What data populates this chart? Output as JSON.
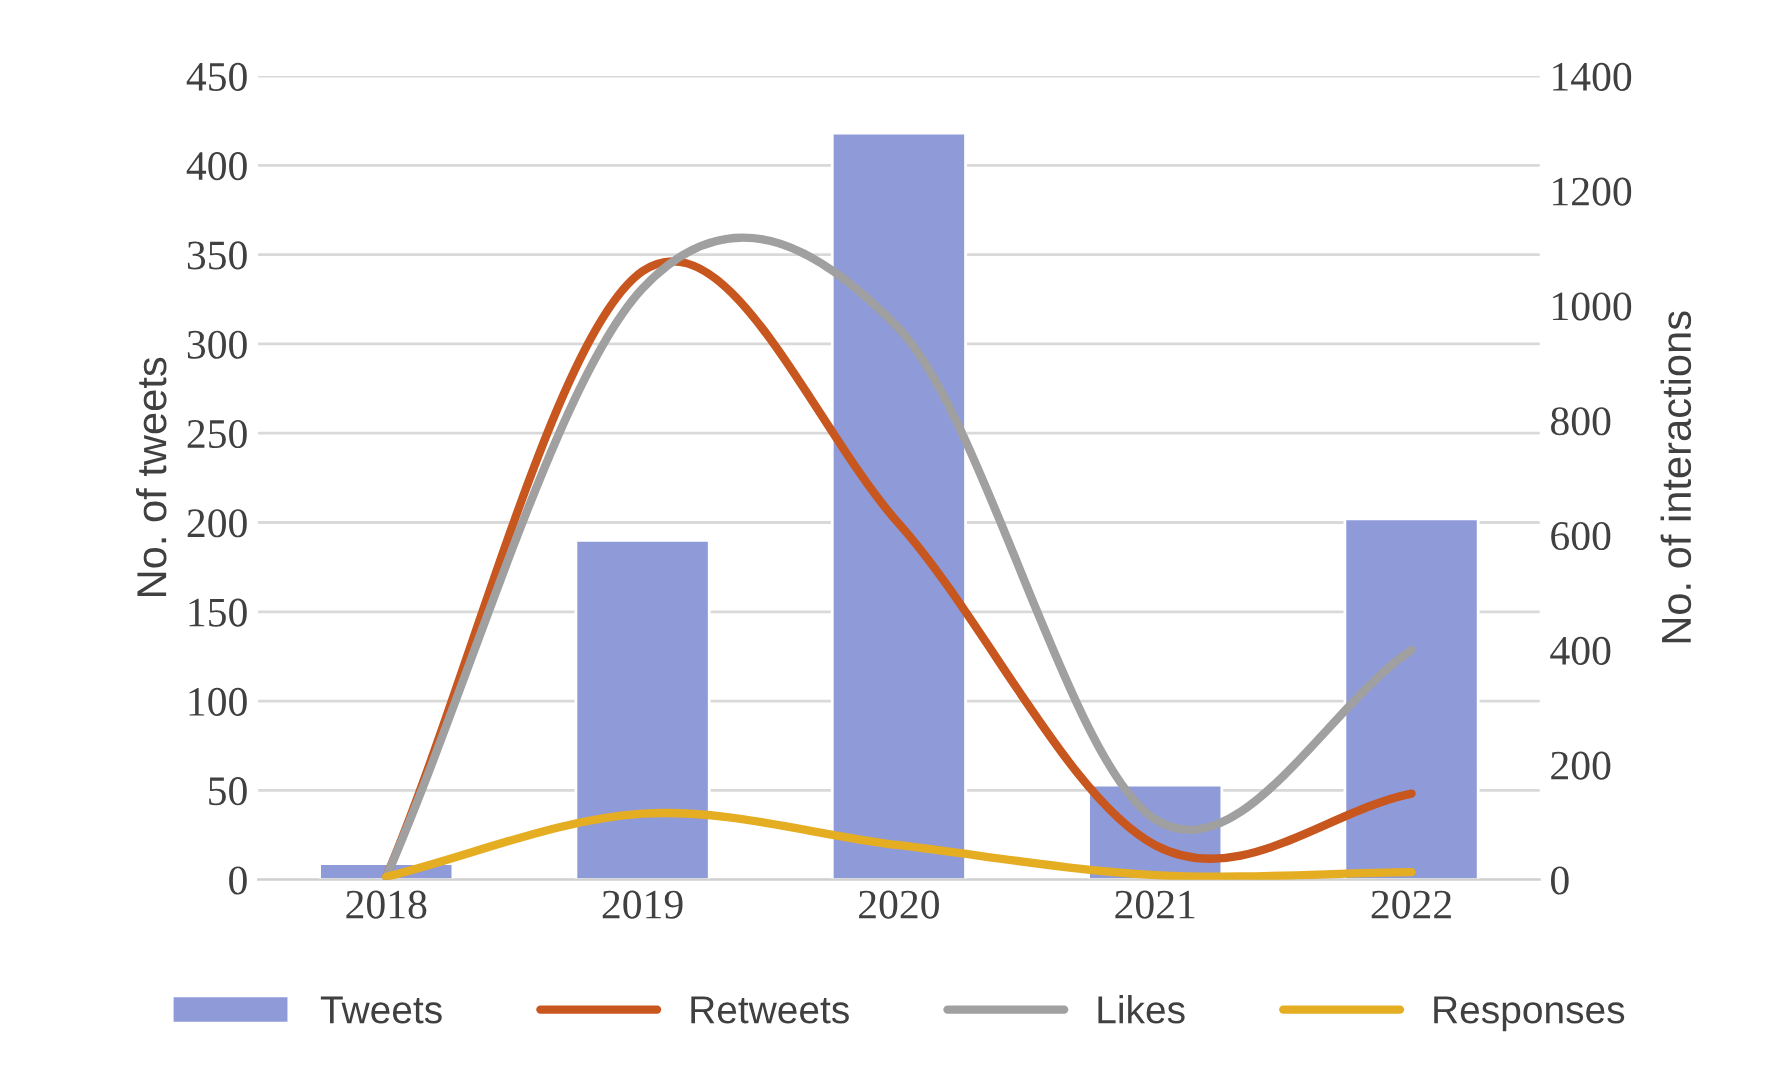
{
  "chart_data": {
    "type": "bar",
    "categories": [
      "2018",
      "2019",
      "2020",
      "2021",
      "2022"
    ],
    "ylabel": "No. of tweets",
    "y2label": "No. of interactions",
    "ylim": [
      0,
      450
    ],
    "yticks": [
      0,
      50,
      100,
      150,
      200,
      250,
      300,
      350,
      400,
      450
    ],
    "y2lim": [
      0,
      1400
    ],
    "y2ticks": [
      0,
      200,
      400,
      600,
      800,
      1000,
      1200,
      1400
    ],
    "grid": "y",
    "legend": "bottom",
    "series": [
      {
        "name": "Tweets",
        "color": "#8f9ad8",
        "values": [
          9,
          190,
          418,
          53,
          202
        ]
      },
      {
        "name": "Retweets",
        "type": "line",
        "axis": "y2",
        "color": "#c8561f",
        "values": [
          5,
          1060,
          620,
          60,
          150
        ]
      },
      {
        "name": "Likes",
        "type": "line",
        "axis": "y2",
        "color": "#a0a0a0",
        "values": [
          5,
          1030,
          960,
          105,
          400
        ]
      },
      {
        "name": "Responses",
        "type": "line",
        "axis": "y2",
        "color": "#e5ae22",
        "values": [
          5,
          115,
          60,
          8,
          13
        ]
      }
    ]
  }
}
